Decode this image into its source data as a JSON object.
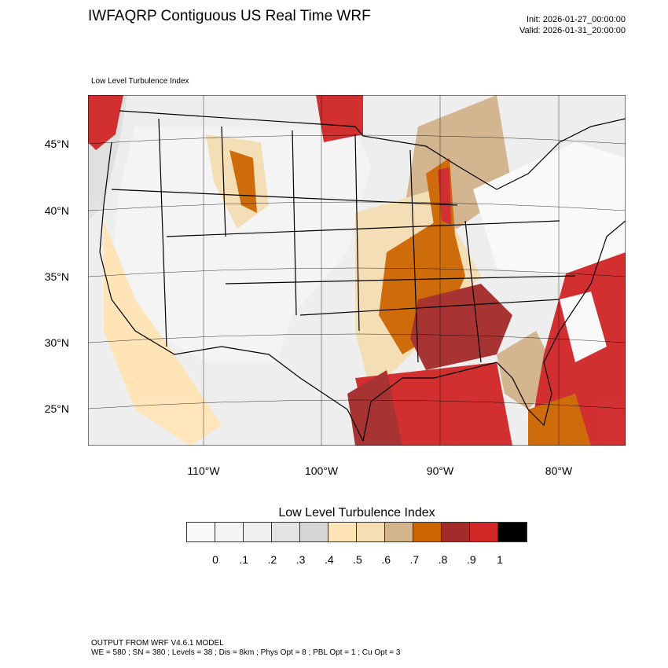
{
  "header": {
    "title": "IWFAQRP Contiguous US Real Time WRF",
    "init": "Init: 2026-01-27_00:00:00",
    "valid": "Valid: 2026-01-31_20:00:00"
  },
  "map": {
    "subtitle": "Low Level Turbulence Index",
    "lat_labels": [
      "45°N",
      "40°N",
      "35°N",
      "30°N",
      "25°N"
    ],
    "lon_labels": [
      "110°W",
      "100°W",
      "90°W",
      "80°W"
    ]
  },
  "colorbar": {
    "title": "Low Level Turbulence Index",
    "labels": [
      "0",
      ".1",
      ".2",
      ".3",
      ".4",
      ".5",
      ".6",
      ".7",
      ".8",
      ".9",
      "1"
    ],
    "colors": [
      "#fafafa",
      "#f5f5f5",
      "#efefef",
      "#e3e3e3",
      "#d6d6d6",
      "#ffe4b5",
      "#f5deb3",
      "#d2b48c",
      "#cd6600",
      "#a52a2a",
      "#d12626",
      "#000000"
    ]
  },
  "footer": {
    "line1": "OUTPUT FROM WRF V4.6.1 MODEL",
    "line2": "WE = 580 ; SN = 380 ; Levels = 38 ; Dis = 8km ; Phys Opt = 8 ; PBL Opt = 1 ; Cu Opt = 3"
  }
}
